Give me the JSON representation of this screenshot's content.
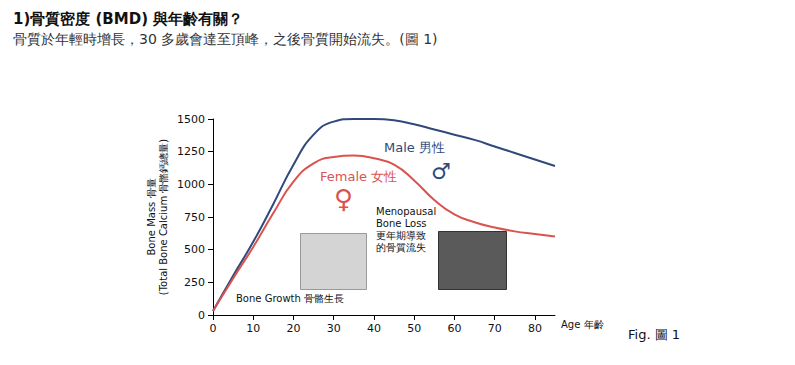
{
  "chart_data": {
    "type": "line",
    "title": "1)骨質密度 (BMD) 與年齡有關？",
    "subtitle": "骨質於年輕時增長，30 多歲會達至頂峰，之後骨質開始流失。(圖 1)",
    "xlabel": "Age 年齡",
    "ylabel": "Bone Mass 骨量\n(Total Bone Calcium 骨骼鈣總量)",
    "x": [
      0,
      5,
      10,
      15,
      20,
      25,
      30,
      35,
      40,
      45,
      50,
      55,
      60,
      65,
      70,
      75,
      80,
      85
    ],
    "series": [
      {
        "name": "Male 男性",
        "color": "#2f4a7a",
        "values": [
          30,
          300,
          560,
          850,
          1150,
          1380,
          1480,
          1500,
          1500,
          1490,
          1460,
          1420,
          1380,
          1340,
          1290,
          1240,
          1190,
          1140
        ]
      },
      {
        "name": "Female 女性",
        "color": "#d9534f",
        "values": [
          30,
          280,
          520,
          780,
          1020,
          1160,
          1210,
          1220,
          1200,
          1150,
          1030,
          880,
          770,
          710,
          670,
          640,
          620,
          600
        ]
      }
    ],
    "xlim": [
      0,
      85
    ],
    "xticks": [
      0,
      10,
      20,
      30,
      40,
      50,
      60,
      70,
      80
    ],
    "ylim": [
      0,
      1500
    ],
    "yticks": [
      0,
      250,
      500,
      750,
      1000,
      1250,
      1500
    ],
    "grid": false,
    "annotations": [
      "♂",
      "♀",
      "Menopausal\nBone Loss\n更年期導致\n的骨質流失",
      "Bone Growth 骨骼生長",
      "Fig. 圖 1"
    ]
  }
}
